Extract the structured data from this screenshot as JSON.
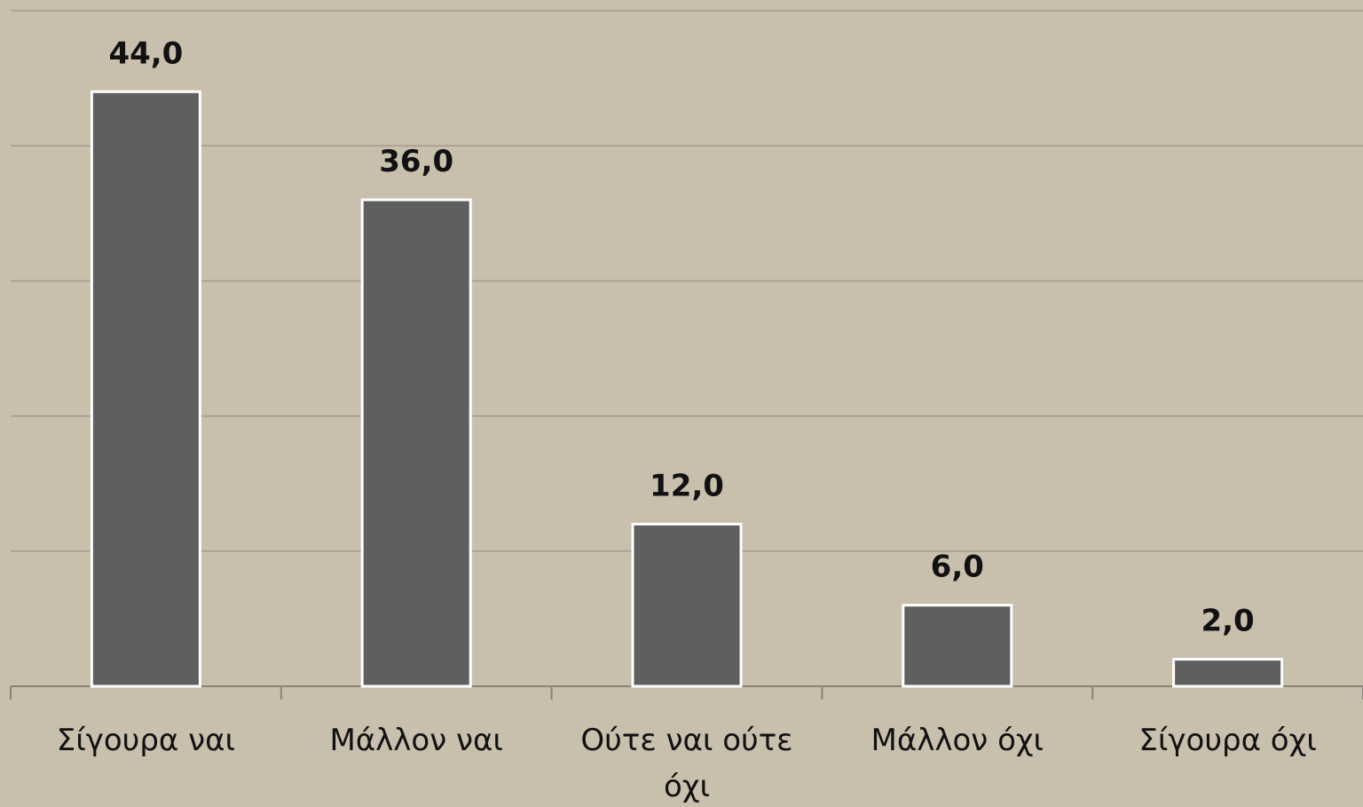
{
  "chart_data": {
    "type": "bar",
    "categories": [
      "Σίγουρα ναι",
      "Μάλλον ναι",
      "Ούτε ναι ούτε όχι",
      "Μάλλον όχι",
      "Σίγουρα όχι"
    ],
    "values": [
      44,
      36,
      12,
      6,
      2
    ],
    "value_labels": [
      "44,0",
      "36,0",
      "12,0",
      "6,0",
      "2,0"
    ],
    "color": "#5f5f5f",
    "ylim": [
      0,
      50
    ],
    "yticks": [
      0,
      10,
      20,
      30,
      40,
      50
    ],
    "grid": true
  }
}
